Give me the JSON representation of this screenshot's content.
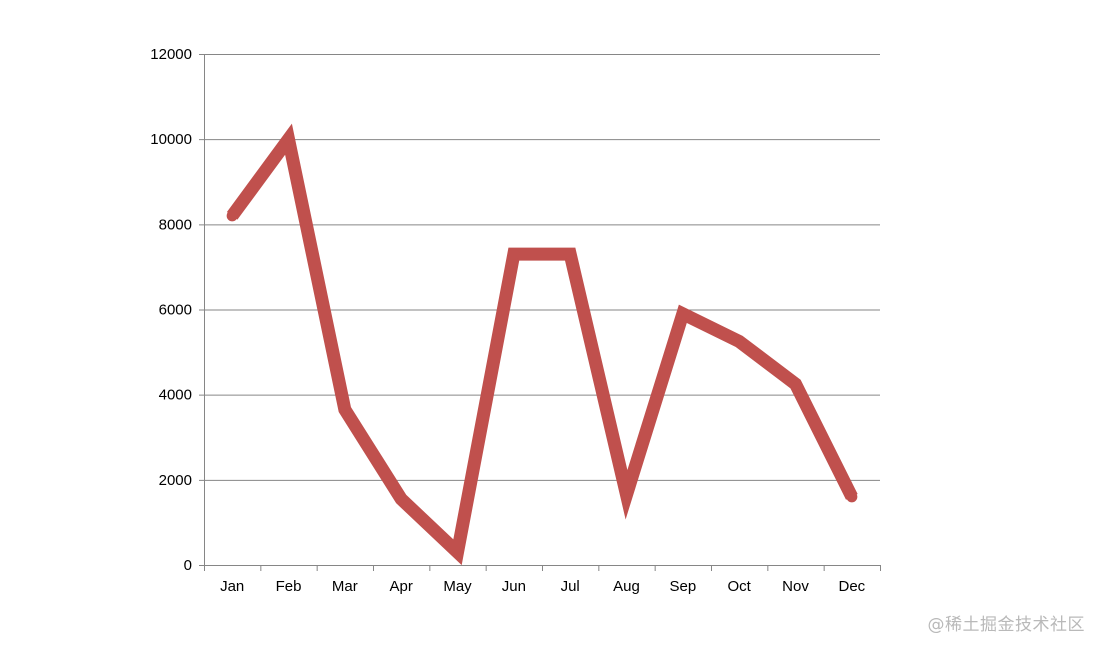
{
  "chart_data": {
    "type": "line",
    "categories": [
      "Jan",
      "Feb",
      "Mar",
      "Apr",
      "May",
      "Jun",
      "Jul",
      "Aug",
      "Sep",
      "Oct",
      "Nov",
      "Dec"
    ],
    "series": [
      {
        "values": [
          8200,
          10000,
          3650,
          1550,
          300,
          7300,
          7300,
          1650,
          5900,
          5250,
          4250,
          1600
        ]
      }
    ],
    "ylim": [
      0,
      12000
    ],
    "yticks": [
      0,
      2000,
      4000,
      6000,
      8000,
      10000,
      12000
    ],
    "grid": "horizontal",
    "legend": "none"
  },
  "colors": {
    "line": "#c0504d",
    "grid": "#868686",
    "axis": "#868686",
    "text": "#000000"
  },
  "watermark": "@稀土掘金技术社区"
}
